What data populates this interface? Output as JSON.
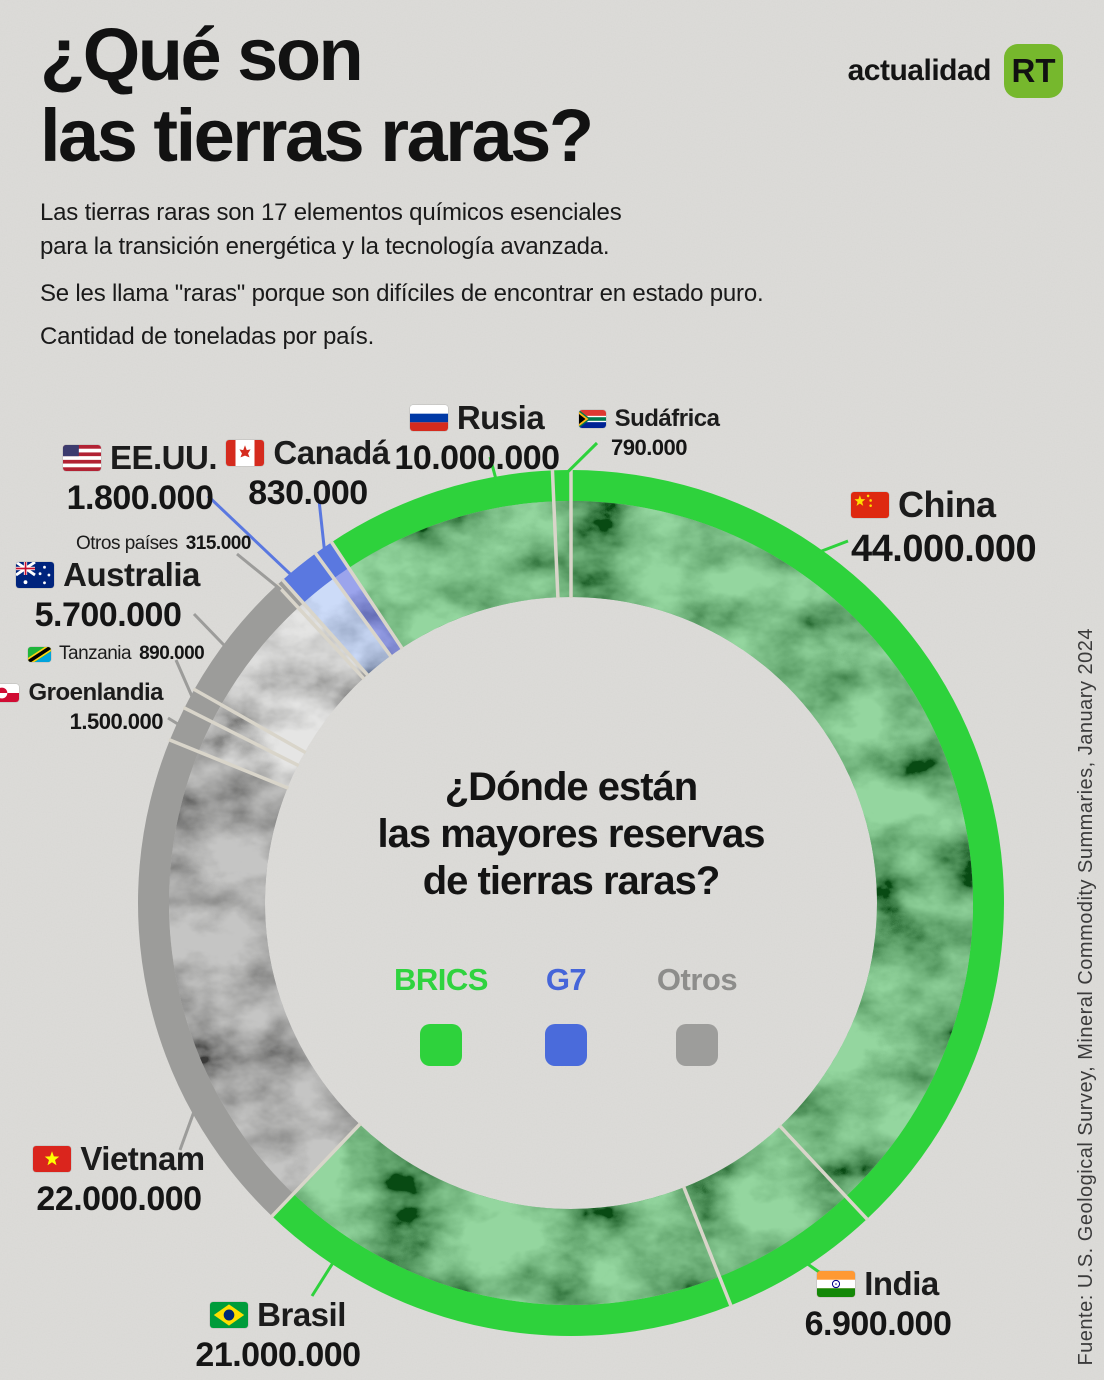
{
  "header": {
    "brand": "actualidad",
    "logo_text": "RT",
    "logo_color": "#76b82d",
    "title_lines": [
      "¿Qué son",
      "las tierras raras?"
    ],
    "intro_paragraph1": [
      "Las tierras raras son 17 elementos químicos esenciales",
      "para la transición energética y la tecnología avanzada."
    ],
    "intro_paragraph2": "Se les llama \"raras\" porque son difíciles de encontrar en estado puro.",
    "intro_paragraph3": "Cantidad de toneladas por país."
  },
  "chart_data": {
    "type": "pie",
    "subtype": "donut",
    "unit": "toneladas",
    "center_question_lines": [
      "¿Dónde están",
      "las mayores reservas",
      "de tierras raras?"
    ],
    "legend": [
      {
        "label": "BRICS",
        "color": "#2ed23c",
        "ring_color": "#2ed23c",
        "text_color": "#2fd33f"
      },
      {
        "label": "G7",
        "color": "#4a6bdb",
        "ring_color": "#5a78e0",
        "text_color": "#4565d9"
      },
      {
        "label": "Otros",
        "color": "#9d9d9b",
        "ring_color": "#9c9c9a",
        "text_color": "#8d8d8b"
      }
    ],
    "segments_clockwise_from_top": [
      {
        "country": "China",
        "value": 44000000,
        "value_label": "44.000.000",
        "group": "BRICS",
        "flag": "flag-china-icon"
      },
      {
        "country": "India",
        "value": 6900000,
        "value_label": "6.900.000",
        "group": "BRICS",
        "flag": "flag-india-icon"
      },
      {
        "country": "Brasil",
        "value": 21000000,
        "value_label": "21.000.000",
        "group": "BRICS",
        "flag": "flag-brazil-icon"
      },
      {
        "country": "Vietnam",
        "value": 22000000,
        "value_label": "22.000.000",
        "group": "Otros",
        "flag": "flag-vietnam-icon"
      },
      {
        "country": "Groenlandia",
        "value": 1500000,
        "value_label": "1.500.000",
        "group": "Otros",
        "flag": "flag-greenland-icon"
      },
      {
        "country": "Tanzania",
        "value": 890000,
        "value_label": "890.000",
        "group": "Otros",
        "flag": "flag-tanzania-icon"
      },
      {
        "country": "Australia",
        "value": 5700000,
        "value_label": "5.700.000",
        "group": "Otros",
        "flag": "flag-australia-icon"
      },
      {
        "country": "Otros países",
        "value": 315000,
        "value_label": "315.000",
        "group": "Otros",
        "flag": null
      },
      {
        "country": "EE.UU.",
        "value": 1800000,
        "value_label": "1.800.000",
        "group": "G7",
        "flag": "flag-usa-icon"
      },
      {
        "country": "Canadá",
        "value": 830000,
        "value_label": "830.000",
        "group": "G7",
        "flag": "flag-canada-icon"
      },
      {
        "country": "Rusia",
        "value": 10000000,
        "value_label": "10.000.000",
        "group": "BRICS",
        "flag": "flag-russia-icon"
      },
      {
        "country": "Sudáfrica",
        "value": 790000,
        "value_label": "790.000",
        "group": "BRICS",
        "flag": "flag-south-africa-icon"
      }
    ]
  },
  "source_note": "Fuente: U.S. Geological Survey, Mineral Commodity Summaries, January 2024"
}
